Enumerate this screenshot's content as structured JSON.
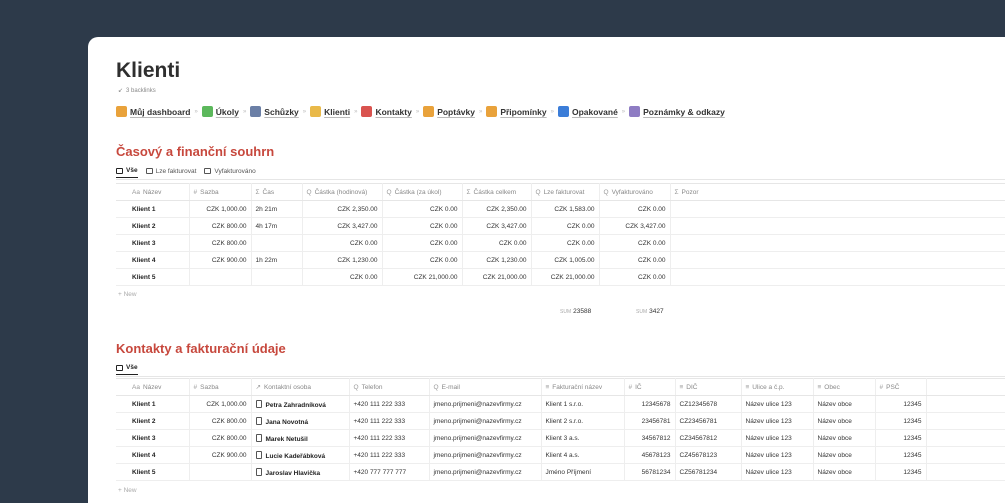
{
  "page": {
    "title": "Klienti",
    "backlinks": "3 backlinks"
  },
  "breadcrumb": [
    {
      "label": "Můj dashboard",
      "icon": "dashboard-icon",
      "color": "#e9a23b"
    },
    {
      "label": "Úkoly",
      "icon": "check-icon",
      "color": "#5cb85c"
    },
    {
      "label": "Schůzky",
      "icon": "meeting-icon",
      "color": "#6b7fa6"
    },
    {
      "label": "Klienti",
      "icon": "handshake-icon",
      "color": "#e9b949"
    },
    {
      "label": "Kontakty",
      "icon": "contacts-icon",
      "color": "#d9534f"
    },
    {
      "label": "Poptávky",
      "icon": "hand-icon",
      "color": "#e9a23b"
    },
    {
      "label": "Připomínky",
      "icon": "bell-icon",
      "color": "#e9a23b"
    },
    {
      "label": "Opakované",
      "icon": "repeat-icon",
      "color": "#3b7dd8"
    },
    {
      "label": "Poznámky & odkazy",
      "icon": "notes-icon",
      "color": "#8e7cc3"
    }
  ],
  "section1": {
    "title": "Časový a finanční souhrn",
    "tabs": [
      "Vše",
      "Lze fakturovat",
      "Vyfakturováno"
    ],
    "columns": [
      "Název",
      "Sazba",
      "Čas",
      "Částka (hodinová)",
      "Částka (za úkol)",
      "Částka celkem",
      "Lze fakturovat",
      "Vyfakturováno",
      "Pozor"
    ],
    "column_icons": [
      "Aa",
      "#",
      "Σ",
      "Q",
      "Q",
      "Σ",
      "Q",
      "Q",
      "Σ"
    ],
    "rows": [
      [
        "Klient 1",
        "CZK 1,000.00",
        "2h 21m",
        "CZK 2,350.00",
        "CZK 0.00",
        "CZK 2,350.00",
        "CZK 1,583.00",
        "CZK 0.00",
        ""
      ],
      [
        "Klient 2",
        "CZK 800.00",
        "4h 17m",
        "CZK 3,427.00",
        "CZK 0.00",
        "CZK 3,427.00",
        "CZK 0.00",
        "CZK 3,427.00",
        ""
      ],
      [
        "Klient 3",
        "CZK 800.00",
        "",
        "CZK 0.00",
        "CZK 0.00",
        "CZK 0.00",
        "CZK 0.00",
        "CZK 0.00",
        ""
      ],
      [
        "Klient 4",
        "CZK 900.00",
        "1h 22m",
        "CZK 1,230.00",
        "CZK 0.00",
        "CZK 1,230.00",
        "CZK 1,005.00",
        "CZK 0.00",
        ""
      ],
      [
        "Klient 5",
        "",
        "",
        "CZK 0.00",
        "CZK 21,000.00",
        "CZK 21,000.00",
        "CZK 21,000.00",
        "CZK 0.00",
        ""
      ]
    ],
    "new_label": "+ New",
    "sum_label": "SUM",
    "sum_lze": "23588",
    "sum_vyfakt": "3427"
  },
  "section2": {
    "title": "Kontakty a fakturační údaje",
    "tabs": [
      "Vše"
    ],
    "columns": [
      "Název",
      "Sazba",
      "Kontaktní osoba",
      "Telefon",
      "E-mail",
      "Fakturační název",
      "IČ",
      "DIČ",
      "Ulice a č.p.",
      "Obec",
      "PSČ"
    ],
    "column_icons": [
      "Aa",
      "#",
      "↗",
      "Q",
      "Q",
      "≡",
      "#",
      "≡",
      "≡",
      "≡",
      "#"
    ],
    "rows": [
      [
        "Klient 1",
        "CZK 1,000.00",
        "Petra Zahradníková",
        "+420 111 222 333",
        "jmeno.prijmeni@nazevfirmy.cz",
        "Klient 1 s.r.o.",
        "12345678",
        "CZ12345678",
        "Název ulice 123",
        "Název obce",
        "12345"
      ],
      [
        "Klient 2",
        "CZK 800.00",
        "Jana Novotná",
        "+420 111 222 333",
        "jmeno.prijmeni@nazevfirmy.cz",
        "Klient 2 s.r.o.",
        "23456781",
        "CZ23456781",
        "Název ulice 123",
        "Název obce",
        "12345"
      ],
      [
        "Klient 3",
        "CZK 800.00",
        "Marek Netušil",
        "+420 111 222 333",
        "jmeno.prijmeni@nazevfirmy.cz",
        "Klient 3 a.s.",
        "34567812",
        "CZ34567812",
        "Název ulice 123",
        "Název obce",
        "12345"
      ],
      [
        "Klient 4",
        "CZK 900.00",
        "Lucie Kadeřábková",
        "+420 111 222 333",
        "jmeno.prijmeni@nazevfirmy.cz",
        "Klient 4 a.s.",
        "45678123",
        "CZ45678123",
        "Název ulice 123",
        "Název obce",
        "12345"
      ],
      [
        "Klient 5",
        "",
        "Jaroslav Hlavička",
        "+420 777 777 777",
        "jmeno.prijmeni@nazevfirmy.cz",
        "Jméno Příjmení",
        "56781234",
        "CZ56781234",
        "Název ulice 123",
        "Název obce",
        "12345"
      ]
    ],
    "new_label": "+ New"
  }
}
